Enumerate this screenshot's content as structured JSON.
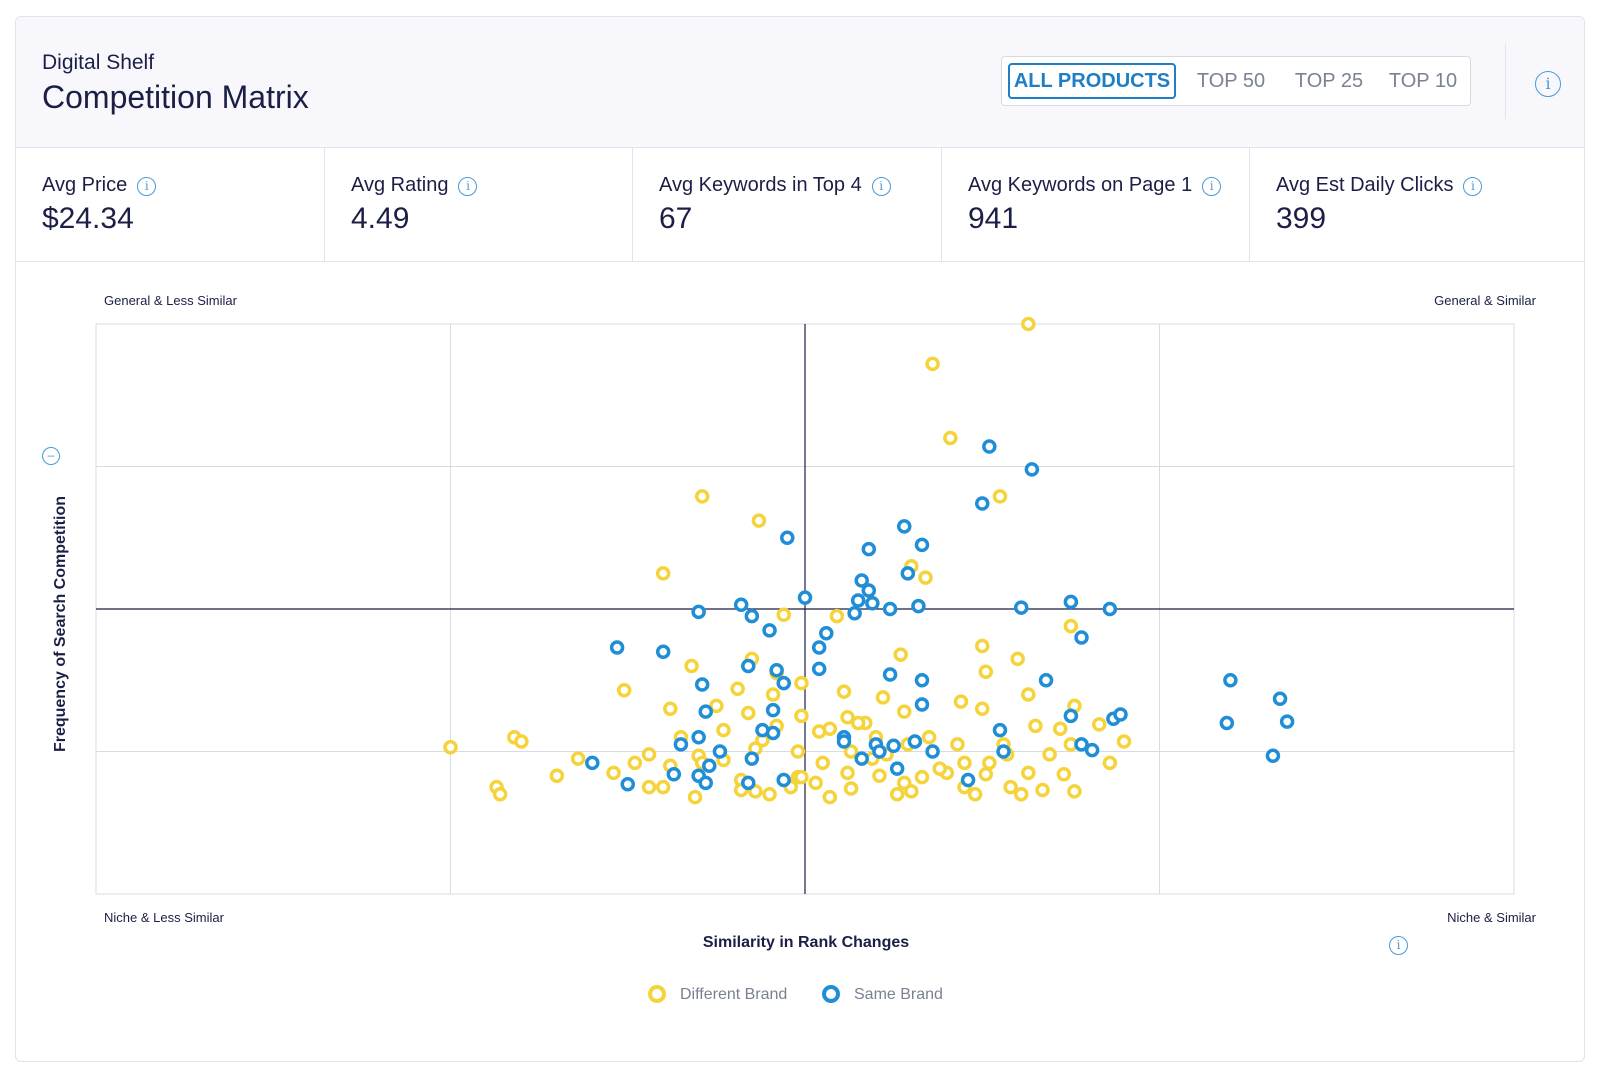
{
  "header": {
    "eyebrow": "Digital Shelf",
    "title": "Competition Matrix",
    "tabs": [
      "ALL PRODUCTS",
      "TOP 50",
      "TOP 25",
      "TOP 10"
    ],
    "active_tab": "ALL PRODUCTS",
    "info_icon": "info-icon"
  },
  "stats": [
    {
      "label": "Avg Price",
      "value": "$24.34"
    },
    {
      "label": "Avg Rating",
      "value": "4.49"
    },
    {
      "label": "Avg Keywords in Top 4",
      "value": "67"
    },
    {
      "label": "Avg Keywords on Page 1",
      "value": "941"
    },
    {
      "label": "Avg Est Daily Clicks",
      "value": "399"
    }
  ],
  "colors": {
    "different_brand": "#f5d33a",
    "same_brand": "#1f8ed6",
    "accent": "#1f7fc6"
  },
  "chart_data": {
    "type": "scatter",
    "title": "",
    "xlabel": "Similarity in Rank Changes",
    "ylabel": "Frequency of Search Competition",
    "xlim": [
      0,
      4
    ],
    "ylim": [
      0,
      4
    ],
    "quadrant_labels": {
      "top_left": "General & Less Similar",
      "top_right": "General & Similar",
      "bottom_left": "Niche & Less Similar",
      "bottom_right": "Niche & Similar"
    },
    "grid": true,
    "legend_position": "bottom-center",
    "series": [
      {
        "name": "Different Brand",
        "points": [
          [
            2.63,
            4.0
          ],
          [
            2.36,
            3.72
          ],
          [
            2.41,
            3.2
          ],
          [
            1.71,
            2.79
          ],
          [
            1.87,
            2.62
          ],
          [
            2.55,
            2.79
          ],
          [
            1.6,
            2.25
          ],
          [
            2.3,
            2.3
          ],
          [
            2.34,
            2.22
          ],
          [
            1.94,
            1.96
          ],
          [
            2.09,
            1.95
          ],
          [
            2.5,
            1.74
          ],
          [
            2.6,
            1.65
          ],
          [
            2.75,
            1.88
          ],
          [
            1.68,
            1.6
          ],
          [
            1.85,
            1.65
          ],
          [
            1.75,
            1.32
          ],
          [
            1.91,
            1.4
          ],
          [
            2.11,
            1.42
          ],
          [
            2.28,
            1.28
          ],
          [
            2.76,
            1.32
          ],
          [
            1.49,
            1.43
          ],
          [
            2.27,
            1.68
          ],
          [
            2.17,
            1.2
          ],
          [
            1.99,
            1.48
          ],
          [
            1.81,
            1.44
          ],
          [
            2.07,
            1.16
          ],
          [
            2.65,
            1.18
          ],
          [
            2.44,
            1.35
          ],
          [
            2.51,
            1.56
          ],
          [
            2.63,
            1.4
          ],
          [
            2.5,
            1.3
          ],
          [
            1.84,
            1.27
          ],
          [
            1.62,
            1.3
          ],
          [
            1.77,
            1.15
          ],
          [
            1.65,
            1.1
          ],
          [
            1.92,
            1.18
          ],
          [
            1.99,
            1.25
          ],
          [
            2.12,
            1.24
          ],
          [
            2.2,
            1.1
          ],
          [
            2.35,
            1.1
          ],
          [
            2.43,
            1.05
          ],
          [
            2.56,
            1.05
          ],
          [
            2.72,
            1.16
          ],
          [
            2.83,
            1.19
          ],
          [
            2.75,
            1.05
          ],
          [
            2.69,
            0.98
          ],
          [
            2.57,
            0.98
          ],
          [
            1.18,
            1.1
          ],
          [
            1.3,
            0.83
          ],
          [
            1.52,
            0.92
          ],
          [
            1.62,
            0.9
          ],
          [
            1.82,
            0.8
          ],
          [
            1.98,
            0.82
          ],
          [
            2.19,
            0.95
          ],
          [
            2.33,
            0.82
          ],
          [
            2.4,
            0.85
          ],
          [
            2.51,
            0.84
          ],
          [
            2.63,
            0.85
          ],
          [
            2.73,
            0.84
          ],
          [
            2.86,
            0.92
          ],
          [
            2.9,
            1.07
          ],
          [
            1.7,
            0.97
          ],
          [
            1.56,
            0.98
          ],
          [
            1.71,
            0.92
          ],
          [
            1.77,
            0.94
          ],
          [
            1.86,
            1.02
          ],
          [
            1.98,
            1.0
          ],
          [
            2.05,
            0.92
          ],
          [
            2.13,
            1.0
          ],
          [
            2.23,
            0.98
          ],
          [
            2.29,
            1.05
          ],
          [
            2.45,
            0.92
          ],
          [
            2.38,
            0.88
          ],
          [
            2.12,
            0.85
          ],
          [
            1.69,
            0.68
          ],
          [
            1.9,
            0.7
          ],
          [
            2.07,
            0.68
          ],
          [
            2.3,
            0.72
          ],
          [
            1.6,
            0.75
          ],
          [
            1.82,
            0.73
          ],
          [
            1.96,
            0.75
          ],
          [
            2.13,
            0.74
          ],
          [
            2.28,
            0.78
          ],
          [
            2.45,
            0.75
          ],
          [
            2.58,
            0.75
          ],
          [
            2.67,
            0.73
          ],
          [
            2.76,
            0.72
          ],
          [
            1.36,
            0.95
          ],
          [
            1.2,
            1.07
          ],
          [
            1.46,
            0.85
          ],
          [
            1.56,
            0.75
          ],
          [
            2.03,
            0.78
          ],
          [
            2.21,
            0.83
          ],
          [
            2.26,
            0.7
          ],
          [
            2.48,
            0.7
          ],
          [
            2.61,
            0.7
          ],
          [
            2.52,
            0.92
          ],
          [
            1.92,
            1.55
          ],
          [
            2.22,
            1.38
          ],
          [
            1.88,
            1.08
          ],
          [
            1.99,
            0.82
          ],
          [
            2.04,
            1.14
          ],
          [
            2.15,
            1.2
          ],
          [
            1.0,
            1.03
          ],
          [
            1.13,
            0.75
          ],
          [
            1.14,
            0.7
          ],
          [
            1.86,
            0.72
          ]
        ]
      },
      {
        "name": "Same Brand",
        "points": [
          [
            2.52,
            3.14
          ],
          [
            2.64,
            2.98
          ],
          [
            2.5,
            2.74
          ],
          [
            1.95,
            2.5
          ],
          [
            2.28,
            2.58
          ],
          [
            2.33,
            2.45
          ],
          [
            2.18,
            2.42
          ],
          [
            2.16,
            2.2
          ],
          [
            1.82,
            2.03
          ],
          [
            2.0,
            2.08
          ],
          [
            2.15,
            2.06
          ],
          [
            2.24,
            2.0
          ],
          [
            2.32,
            2.02
          ],
          [
            1.7,
            1.98
          ],
          [
            1.9,
            1.85
          ],
          [
            2.06,
            1.83
          ],
          [
            1.47,
            1.73
          ],
          [
            1.84,
            1.6
          ],
          [
            1.92,
            1.57
          ],
          [
            2.04,
            1.58
          ],
          [
            1.6,
            1.7
          ],
          [
            1.71,
            1.47
          ],
          [
            1.94,
            1.48
          ],
          [
            2.25,
            1.04
          ],
          [
            2.2,
            1.05
          ],
          [
            2.31,
            1.07
          ],
          [
            2.24,
            1.54
          ],
          [
            2.75,
            2.05
          ],
          [
            2.86,
            2.0
          ],
          [
            2.61,
            2.01
          ],
          [
            2.68,
            1.5
          ],
          [
            1.91,
            1.13
          ],
          [
            1.88,
            1.15
          ],
          [
            1.7,
            1.1
          ],
          [
            1.73,
            0.9
          ],
          [
            1.65,
            1.05
          ],
          [
            1.85,
            0.95
          ],
          [
            2.11,
            1.1
          ],
          [
            2.16,
            0.95
          ],
          [
            2.21,
            1.0
          ],
          [
            2.33,
            1.5
          ],
          [
            2.33,
            1.33
          ],
          [
            2.56,
            1.0
          ],
          [
            2.36,
            1.0
          ],
          [
            3.2,
            1.5
          ],
          [
            3.34,
            1.37
          ],
          [
            3.36,
            1.21
          ],
          [
            3.19,
            1.2
          ],
          [
            3.32,
            0.97
          ],
          [
            2.78,
            1.8
          ],
          [
            2.26,
            0.88
          ],
          [
            2.46,
            0.8
          ],
          [
            1.7,
            0.83
          ],
          [
            1.72,
            0.78
          ],
          [
            1.84,
            0.78
          ],
          [
            1.94,
            0.8
          ],
          [
            1.4,
            0.92
          ],
          [
            1.5,
            0.77
          ],
          [
            1.76,
            1.0
          ],
          [
            2.11,
            1.07
          ],
          [
            2.55,
            1.15
          ],
          [
            2.75,
            1.25
          ],
          [
            2.78,
            1.05
          ],
          [
            2.87,
            1.23
          ],
          [
            2.89,
            1.26
          ],
          [
            2.81,
            1.01
          ],
          [
            1.63,
            0.84
          ],
          [
            1.72,
            1.28
          ],
          [
            1.91,
            1.29
          ],
          [
            2.18,
            2.13
          ],
          [
            2.29,
            2.25
          ],
          [
            2.19,
            2.04
          ],
          [
            2.04,
            1.73
          ],
          [
            2.14,
            1.97
          ],
          [
            1.85,
            1.95
          ]
        ]
      }
    ]
  }
}
